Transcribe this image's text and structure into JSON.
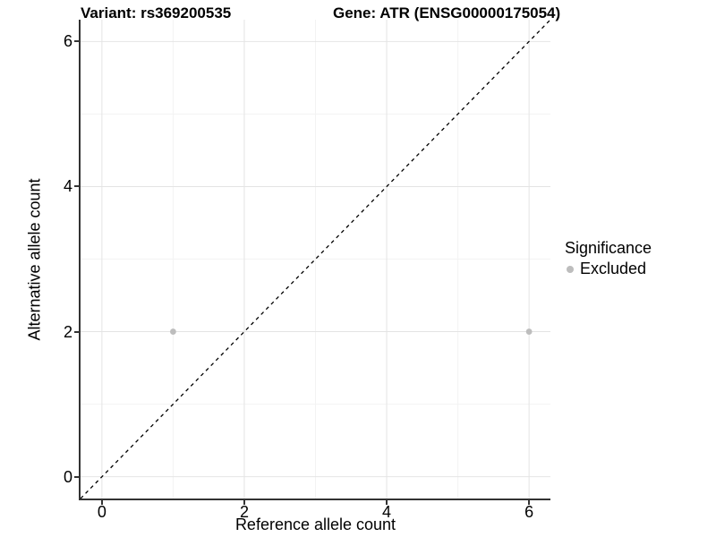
{
  "chart_data": {
    "type": "scatter",
    "title_left": "Variant: rs369200535",
    "title_right": "Gene: ATR (ENSG00000175054)",
    "xlabel": "Reference allele count",
    "ylabel": "Alternative allele count",
    "xlim": [
      -0.3,
      6.3
    ],
    "ylim": [
      -0.3,
      6.3
    ],
    "xticks": [
      0,
      2,
      4,
      6
    ],
    "yticks": [
      0,
      2,
      4,
      6
    ],
    "xminor": [
      1,
      3,
      5
    ],
    "yminor": [
      1,
      3,
      5
    ],
    "grid": "major+minor",
    "series": [
      {
        "name": "Excluded",
        "marker": "circle",
        "color": "#bdbdbd",
        "points": [
          [
            1,
            2
          ],
          [
            6,
            2
          ]
        ]
      }
    ],
    "reference_line": {
      "kind": "identity y=x",
      "style": "dashed",
      "color": "#000000",
      "from": [
        -0.3,
        -0.3
      ],
      "to": [
        6.3,
        6.3
      ]
    },
    "legend": {
      "title": "Significance",
      "position": "right",
      "items": [
        {
          "label": "Excluded",
          "color": "#bdbdbd"
        }
      ]
    },
    "colors": {
      "background": "#ffffff",
      "grid_major": "#e4e4e4",
      "grid_minor": "#f3f3f3",
      "axis_line": "#333333",
      "text": "#000000"
    }
  }
}
